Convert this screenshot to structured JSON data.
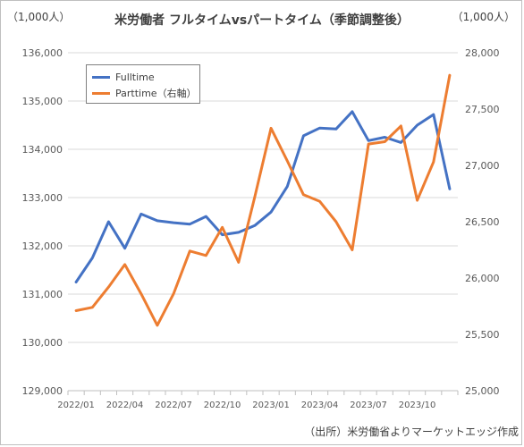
{
  "header": {
    "title": "米労働者 フルタイムvsパートタイム（季節調整後）",
    "unit_left": "（1,000人）",
    "unit_right": "（1,000人）"
  },
  "footer": {
    "source": "（出所）米労働省よりマーケットエッジ作成"
  },
  "legend": {
    "items": [
      "Fulltime",
      "Parttime（右軸）"
    ]
  },
  "colors": {
    "fulltime": "#4472C4",
    "parttime": "#ED7D31",
    "grid": "#d9d9d9",
    "axis": "#bfbfbf"
  },
  "chart_data": {
    "type": "line",
    "title": "米労働者 フルタイムvsパートタイム（季節調整後）",
    "x": [
      "2022/01",
      "2022/02",
      "2022/03",
      "2022/04",
      "2022/05",
      "2022/06",
      "2022/07",
      "2022/08",
      "2022/09",
      "2022/10",
      "2022/11",
      "2022/12",
      "2023/01",
      "2023/02",
      "2023/03",
      "2023/04",
      "2023/05",
      "2023/06",
      "2023/07",
      "2023/08",
      "2023/09",
      "2023/10",
      "2023/11",
      "2023/12"
    ],
    "x_tick_labels": [
      "2022/01",
      "2022/04",
      "2022/07",
      "2022/10",
      "2023/01",
      "2023/04",
      "2023/07",
      "2023/10"
    ],
    "series": [
      {
        "name": "Fulltime",
        "axis": "left",
        "values": [
          131250,
          131750,
          132500,
          131950,
          132660,
          132520,
          132480,
          132450,
          132610,
          132230,
          132280,
          132420,
          132700,
          133230,
          134280,
          134440,
          134420,
          134780,
          134180,
          134250,
          134140,
          134500,
          134720,
          133180
        ]
      },
      {
        "name": "Parttime（右軸）",
        "axis": "right",
        "values": [
          25710,
          25740,
          25920,
          26120,
          25860,
          25580,
          25860,
          26240,
          26200,
          26450,
          26140,
          26720,
          27330,
          27040,
          26740,
          26680,
          26500,
          26250,
          27190,
          27210,
          27350,
          26690,
          27030,
          27800
        ]
      }
    ],
    "y_left": {
      "min": 129000,
      "max": 136000,
      "step": 1000,
      "ticks": [
        "129,000",
        "130,000",
        "131,000",
        "132,000",
        "133,000",
        "134,000",
        "135,000",
        "136,000"
      ]
    },
    "y_right": {
      "min": 25000,
      "max": 28000,
      "step": 500,
      "ticks": [
        "25,000",
        "25,500",
        "26,000",
        "26,500",
        "27,000",
        "27,500",
        "28,000"
      ]
    },
    "grid": true,
    "legend_position": "top-left"
  }
}
